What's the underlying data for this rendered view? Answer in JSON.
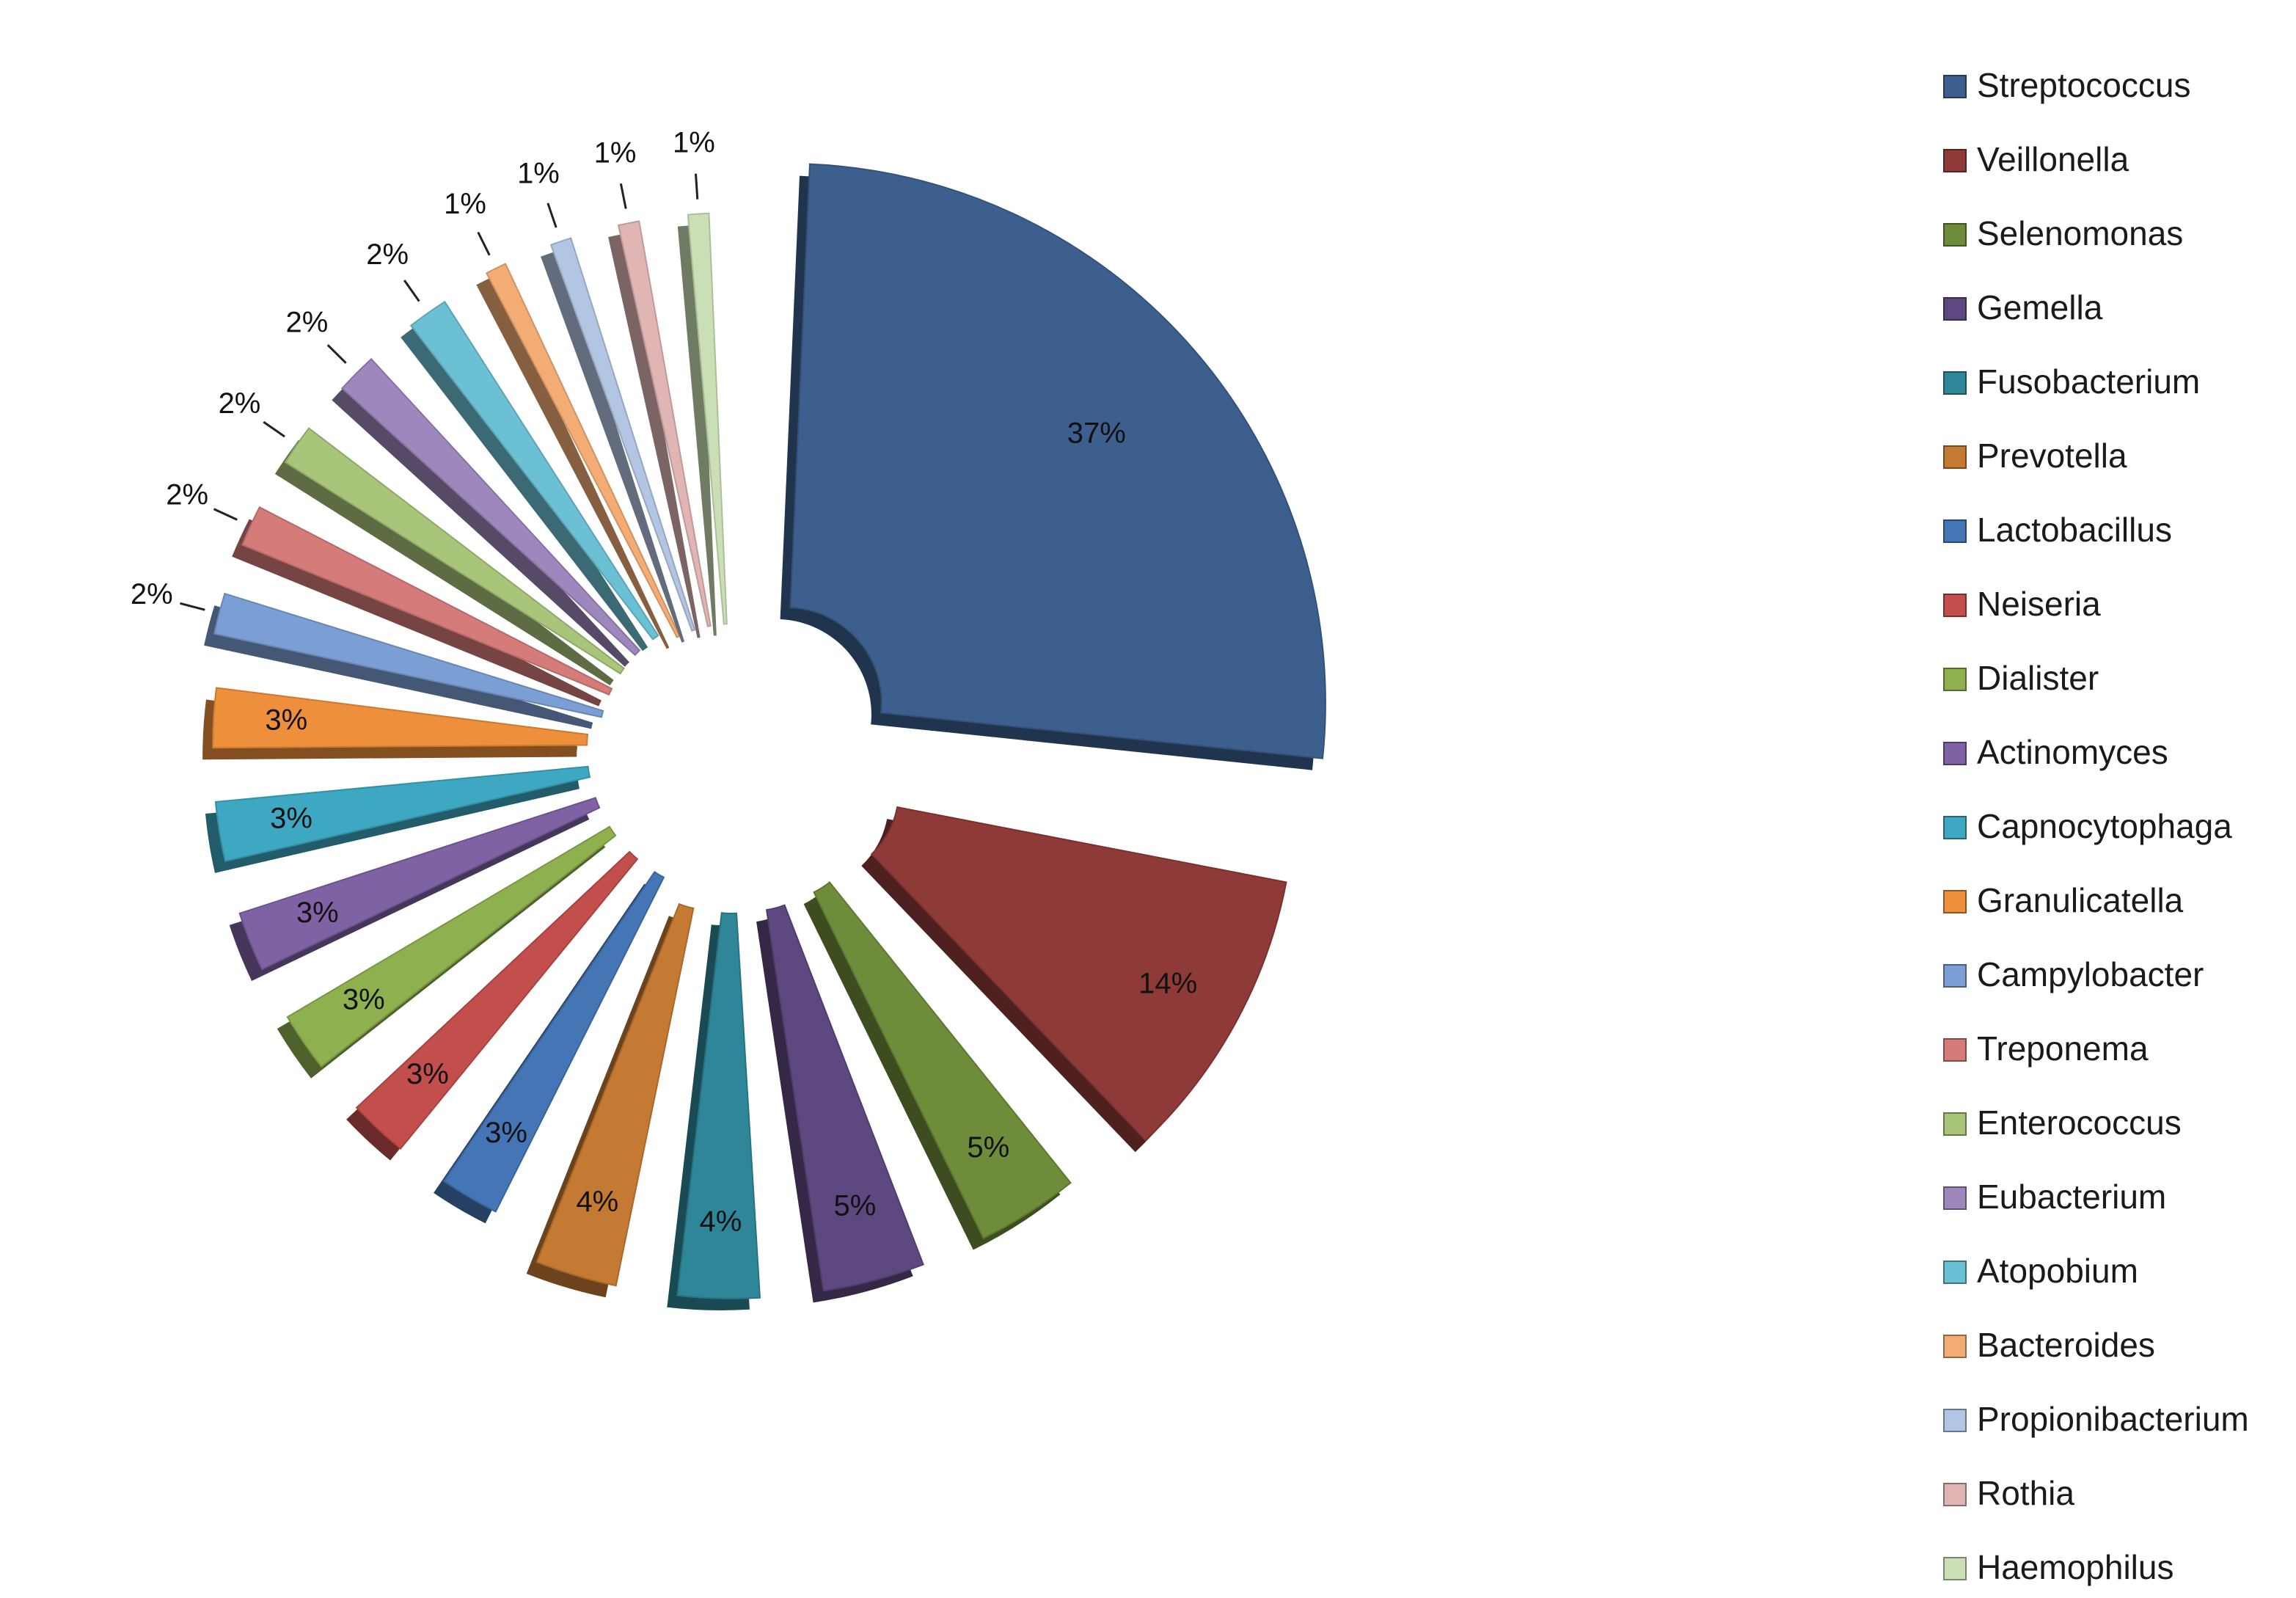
{
  "chart_data": {
    "type": "pie",
    "style": "3d-exploded",
    "legend_position": "right",
    "slices": [
      {
        "name": "Streptococcus",
        "value": 37,
        "label": "37%",
        "color": "#3c5f8e"
      },
      {
        "name": "Veillonella",
        "value": 14,
        "label": "14%",
        "color": "#8e3a39"
      },
      {
        "name": "Selenomonas",
        "value": 5,
        "label": "5%",
        "color": "#6f8c3a"
      },
      {
        "name": "Gemella",
        "value": 5,
        "label": "5%",
        "color": "#5e4880"
      },
      {
        "name": "Fusobacterium",
        "value": 4,
        "label": "4%",
        "color": "#2f8699"
      },
      {
        "name": "Prevotella",
        "value": 4,
        "label": "4%",
        "color": "#c57a34"
      },
      {
        "name": "Lactobacillus",
        "value": 3,
        "label": "3%",
        "color": "#4475b4"
      },
      {
        "name": "Neiseria",
        "value": 3,
        "label": "3%",
        "color": "#c24f4c"
      },
      {
        "name": "Dialister",
        "value": 3,
        "label": "3%",
        "color": "#8fb04f"
      },
      {
        "name": "Actinomyces",
        "value": 3,
        "label": "3%",
        "color": "#7f62a3"
      },
      {
        "name": "Capnocytophaga",
        "value": 3,
        "label": "3%",
        "color": "#3ea8c2"
      },
      {
        "name": "Granulicatella",
        "value": 3,
        "label": "3%",
        "color": "#ee8f3c"
      },
      {
        "name": "Campylobacter",
        "value": 2,
        "label": "2%",
        "color": "#7b9fd4"
      },
      {
        "name": "Treponema",
        "value": 2,
        "label": "2%",
        "color": "#d57b7a"
      },
      {
        "name": "Enterococcus",
        "value": 2,
        "label": "2%",
        "color": "#a9c57a"
      },
      {
        "name": "Eubacterium",
        "value": 2,
        "label": "2%",
        "color": "#9d87bc"
      },
      {
        "name": "Atopobium",
        "value": 2,
        "label": "2%",
        "color": "#6cc0d4"
      },
      {
        "name": "Bacteroides",
        "value": 1,
        "label": "1%",
        "color": "#f3ad74"
      },
      {
        "name": "Propionibacterium",
        "value": 1,
        "label": "1%",
        "color": "#b2c5e2"
      },
      {
        "name": "Rothia",
        "value": 1,
        "label": "1%",
        "color": "#e2b5b5"
      },
      {
        "name": "Haemophilus",
        "value": 1,
        "label": "1%",
        "color": "#cbdfb6"
      }
    ]
  }
}
